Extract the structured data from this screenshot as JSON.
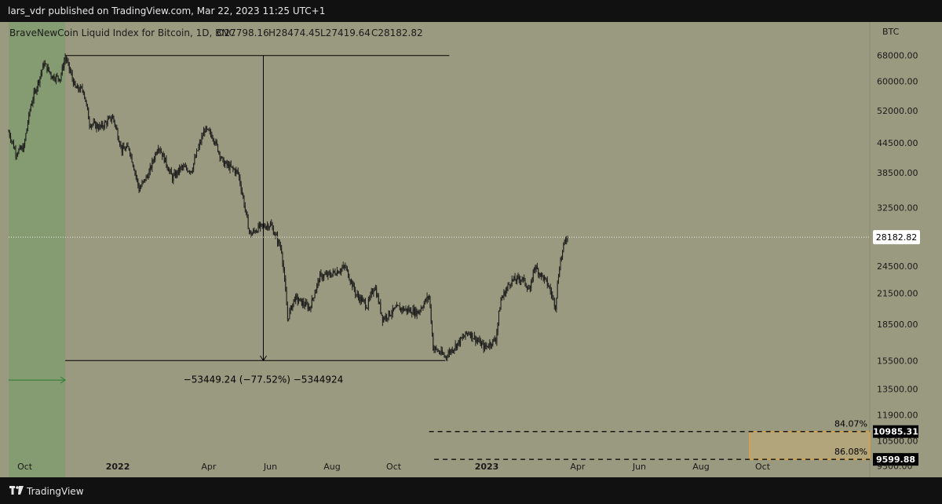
{
  "header": {
    "published_line": "lars_vdr published on TradingView.com, Mar 22, 2023 11:25 UTC+1"
  },
  "footer": {
    "brand": "TradingView",
    "logo_icon": "tradingview-logo-icon"
  },
  "colors": {
    "chart_background": "#9a9a81",
    "highlight_zone": "#819b6e",
    "candle": "#1c1c1c",
    "green_arrow": "#2e7d32",
    "target_box_border": "#f5a623",
    "target_box_fill": "#b5a77c",
    "price_label_bg": "#000000"
  },
  "chart_data": {
    "type": "candlestick",
    "title": "BraveNewCoin Liquid Index for Bitcoin, 1D, BNC",
    "ohlc_readout": {
      "open": "O27798.16",
      "high": "H28474.45",
      "low": "L27419.64",
      "close": "C28182.82"
    },
    "currency": "BTC",
    "y_scale": "log",
    "ylim": [
      8800,
      80000
    ],
    "y_ticks": [
      {
        "value": 68000,
        "label": "68000.00"
      },
      {
        "value": 60000,
        "label": "60000.00"
      },
      {
        "value": 52000,
        "label": "52000.00"
      },
      {
        "value": 44500,
        "label": "44500.00"
      },
      {
        "value": 38500,
        "label": "38500.00"
      },
      {
        "value": 32500,
        "label": "32500.00"
      },
      {
        "value": 24500,
        "label": "24500.00"
      },
      {
        "value": 21500,
        "label": "21500.00"
      },
      {
        "value": 18500,
        "label": "18500.00"
      },
      {
        "value": 15500,
        "label": "15500.00"
      },
      {
        "value": 13500,
        "label": "13500.00"
      },
      {
        "value": 11900,
        "label": "11900.00"
      },
      {
        "value": 10500,
        "label": "10500.00"
      },
      {
        "value": 9300,
        "label": "9300.00"
      }
    ],
    "x_range": [
      "2021-09-15",
      "2024-01-15"
    ],
    "x_ticks": [
      {
        "date": "2021-10-01",
        "label": "Oct",
        "bold": false
      },
      {
        "date": "2022-01-01",
        "label": "2022",
        "bold": true
      },
      {
        "date": "2022-04-01",
        "label": "Apr",
        "bold": false
      },
      {
        "date": "2022-06-01",
        "label": "Jun",
        "bold": false
      },
      {
        "date": "2022-08-01",
        "label": "Aug",
        "bold": false
      },
      {
        "date": "2022-10-01",
        "label": "Oct",
        "bold": false
      },
      {
        "date": "2023-01-01",
        "label": "2023",
        "bold": true
      },
      {
        "date": "2023-04-01",
        "label": "Apr",
        "bold": false
      },
      {
        "date": "2023-06-01",
        "label": "Jun",
        "bold": false
      },
      {
        "date": "2023-08-01",
        "label": "Aug",
        "bold": false
      },
      {
        "date": "2023-10-01",
        "label": "Oct",
        "bold": false
      }
    ],
    "price_path": [
      [
        "2021-09-15",
        47000
      ],
      [
        "2021-09-22",
        42500
      ],
      [
        "2021-09-30",
        43500
      ],
      [
        "2021-10-07",
        53500
      ],
      [
        "2021-10-15",
        60500
      ],
      [
        "2021-10-20",
        65500
      ],
      [
        "2021-10-28",
        61500
      ],
      [
        "2021-11-05",
        61000
      ],
      [
        "2021-11-10",
        67500
      ],
      [
        "2021-11-20",
        58000
      ],
      [
        "2021-11-28",
        57500
      ],
      [
        "2021-12-04",
        49000
      ],
      [
        "2021-12-15",
        48000
      ],
      [
        "2021-12-27",
        50500
      ],
      [
        "2022-01-05",
        43000
      ],
      [
        "2022-01-12",
        43500
      ],
      [
        "2022-01-22",
        35500
      ],
      [
        "2022-02-01",
        38500
      ],
      [
        "2022-02-10",
        44000
      ],
      [
        "2022-02-24",
        37500
      ],
      [
        "2022-03-05",
        39500
      ],
      [
        "2022-03-15",
        39000
      ],
      [
        "2022-03-28",
        47500
      ],
      [
        "2022-04-05",
        46000
      ],
      [
        "2022-04-15",
        40500
      ],
      [
        "2022-04-30",
        38500
      ],
      [
        "2022-05-09",
        30500
      ],
      [
        "2022-05-12",
        28500
      ],
      [
        "2022-05-20",
        29500
      ],
      [
        "2022-06-01",
        30000
      ],
      [
        "2022-06-12",
        26500
      ],
      [
        "2022-06-18",
        19000
      ],
      [
        "2022-06-25",
        21000
      ],
      [
        "2022-07-10",
        20000
      ],
      [
        "2022-07-20",
        23300
      ],
      [
        "2022-07-30",
        23500
      ],
      [
        "2022-08-14",
        24400
      ],
      [
        "2022-08-25",
        21300
      ],
      [
        "2022-09-05",
        20200
      ],
      [
        "2022-09-12",
        22300
      ],
      [
        "2022-09-20",
        19000
      ],
      [
        "2022-10-05",
        20000
      ],
      [
        "2022-10-25",
        19600
      ],
      [
        "2022-11-05",
        21200
      ],
      [
        "2022-11-09",
        16500
      ],
      [
        "2022-11-21",
        15800
      ],
      [
        "2022-12-05",
        17000
      ],
      [
        "2022-12-14",
        17800
      ],
      [
        "2022-12-30",
        16500
      ],
      [
        "2023-01-10",
        17200
      ],
      [
        "2023-01-15",
        20800
      ],
      [
        "2023-01-25",
        22800
      ],
      [
        "2023-02-05",
        23100
      ],
      [
        "2023-02-13",
        21700
      ],
      [
        "2023-02-17",
        24500
      ],
      [
        "2023-02-25",
        23300
      ],
      [
        "2023-03-03",
        22300
      ],
      [
        "2023-03-10",
        20200
      ],
      [
        "2023-03-14",
        24600
      ],
      [
        "2023-03-20",
        28000
      ],
      [
        "2023-03-22",
        28182.82
      ]
    ],
    "last_price": {
      "value": 28182.82,
      "label": "28182.82"
    },
    "measure": {
      "high": 68000,
      "high_date": "2021-11-10",
      "low": 15500,
      "low_date": "2022-11-21",
      "vertical_at": "2022-05-25",
      "right_end": "2022-11-21",
      "label": "−53449.24 (−77.52%) −5344924"
    },
    "highlight_zone": {
      "from": "2021-09-15",
      "to": "2021-11-10"
    },
    "green_arrow": {
      "price": 14100,
      "from": "2021-09-15",
      "to": "2021-11-10"
    },
    "target_levels": [
      {
        "value": 10985.31,
        "label": "10985.31",
        "pct": "84.07%",
        "start": "2022-11-05"
      },
      {
        "value": 9599.88,
        "label": "9599.88",
        "pct": "86.08%",
        "start": "2022-11-10"
      }
    ],
    "target_box": {
      "from": "2023-09-18",
      "to": "2024-01-15",
      "top": 10985.31,
      "bottom": 9599.88
    }
  }
}
